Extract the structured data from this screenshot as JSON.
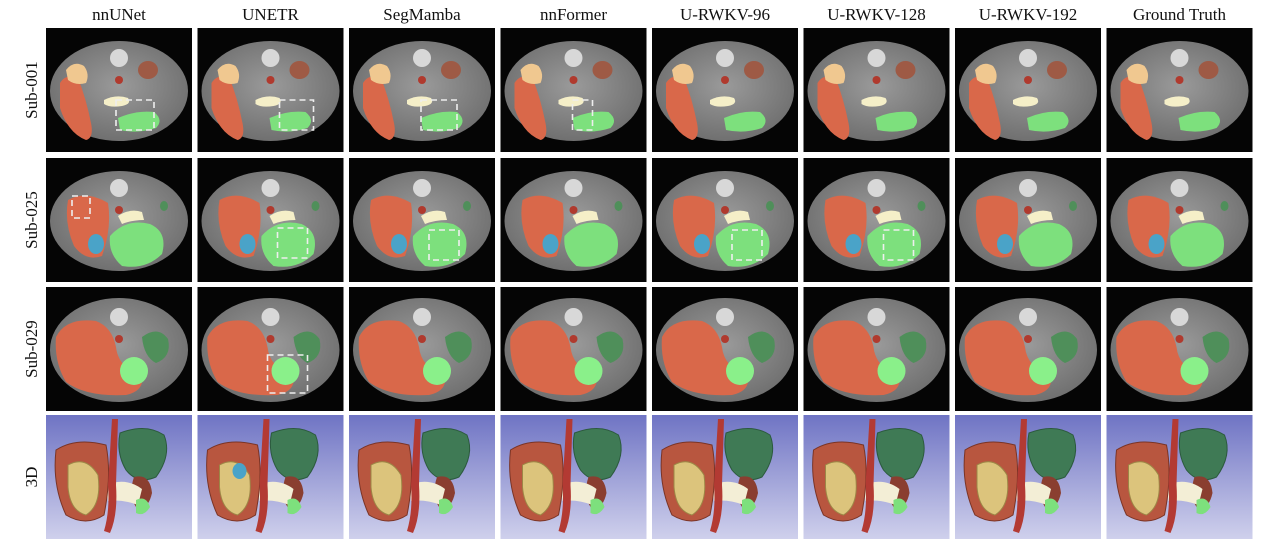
{
  "columns": [
    "nnUNet",
    "UNETR",
    "SegMamba",
    "nnFormer",
    "U-RWKV-96",
    "U-RWKV-128",
    "U-RWKV-192",
    "Ground Truth"
  ],
  "rows": [
    "Sub-001",
    "Sub-025",
    "Sub-029",
    "3D"
  ]
}
